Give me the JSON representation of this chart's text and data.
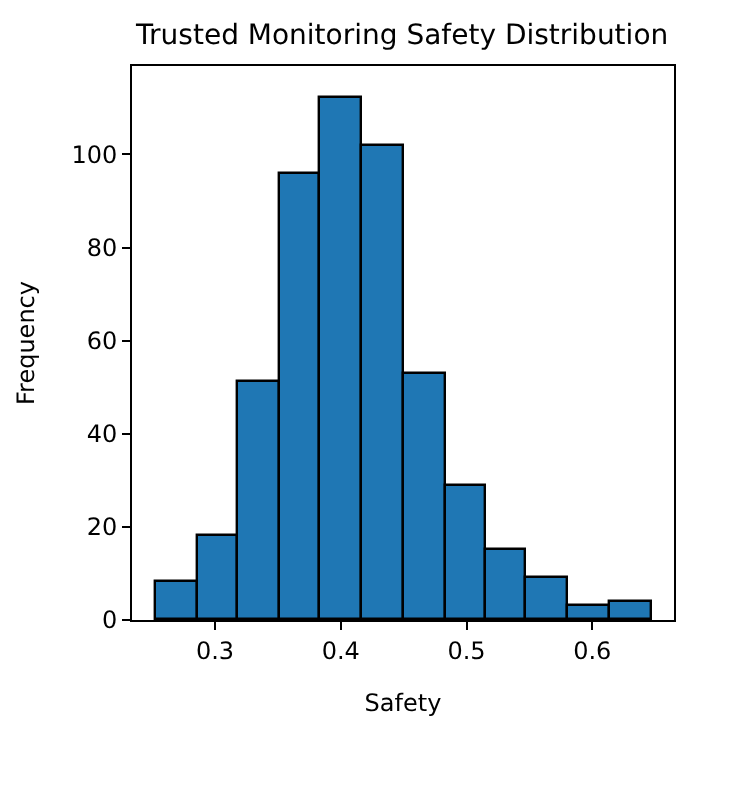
{
  "chart_data": {
    "type": "histogram",
    "title": "Trusted Monitoring Safety Distribution",
    "xlabel": "Safety",
    "ylabel": "Frequency",
    "bins": [
      0.253,
      0.286,
      0.319,
      0.351,
      0.384,
      0.417,
      0.45,
      0.483,
      0.515,
      0.548,
      0.581,
      0.614,
      0.647
    ],
    "values": [
      8,
      18,
      51,
      96,
      112,
      102,
      53,
      29,
      15,
      9,
      3,
      4
    ],
    "color": "#1f77b4",
    "xlim": [
      0.234,
      0.665
    ],
    "ylim": [
      0,
      119
    ],
    "xticks": [
      0.3,
      0.4,
      0.5,
      0.6
    ],
    "yticks": [
      0,
      20,
      40,
      60,
      80,
      100
    ]
  }
}
